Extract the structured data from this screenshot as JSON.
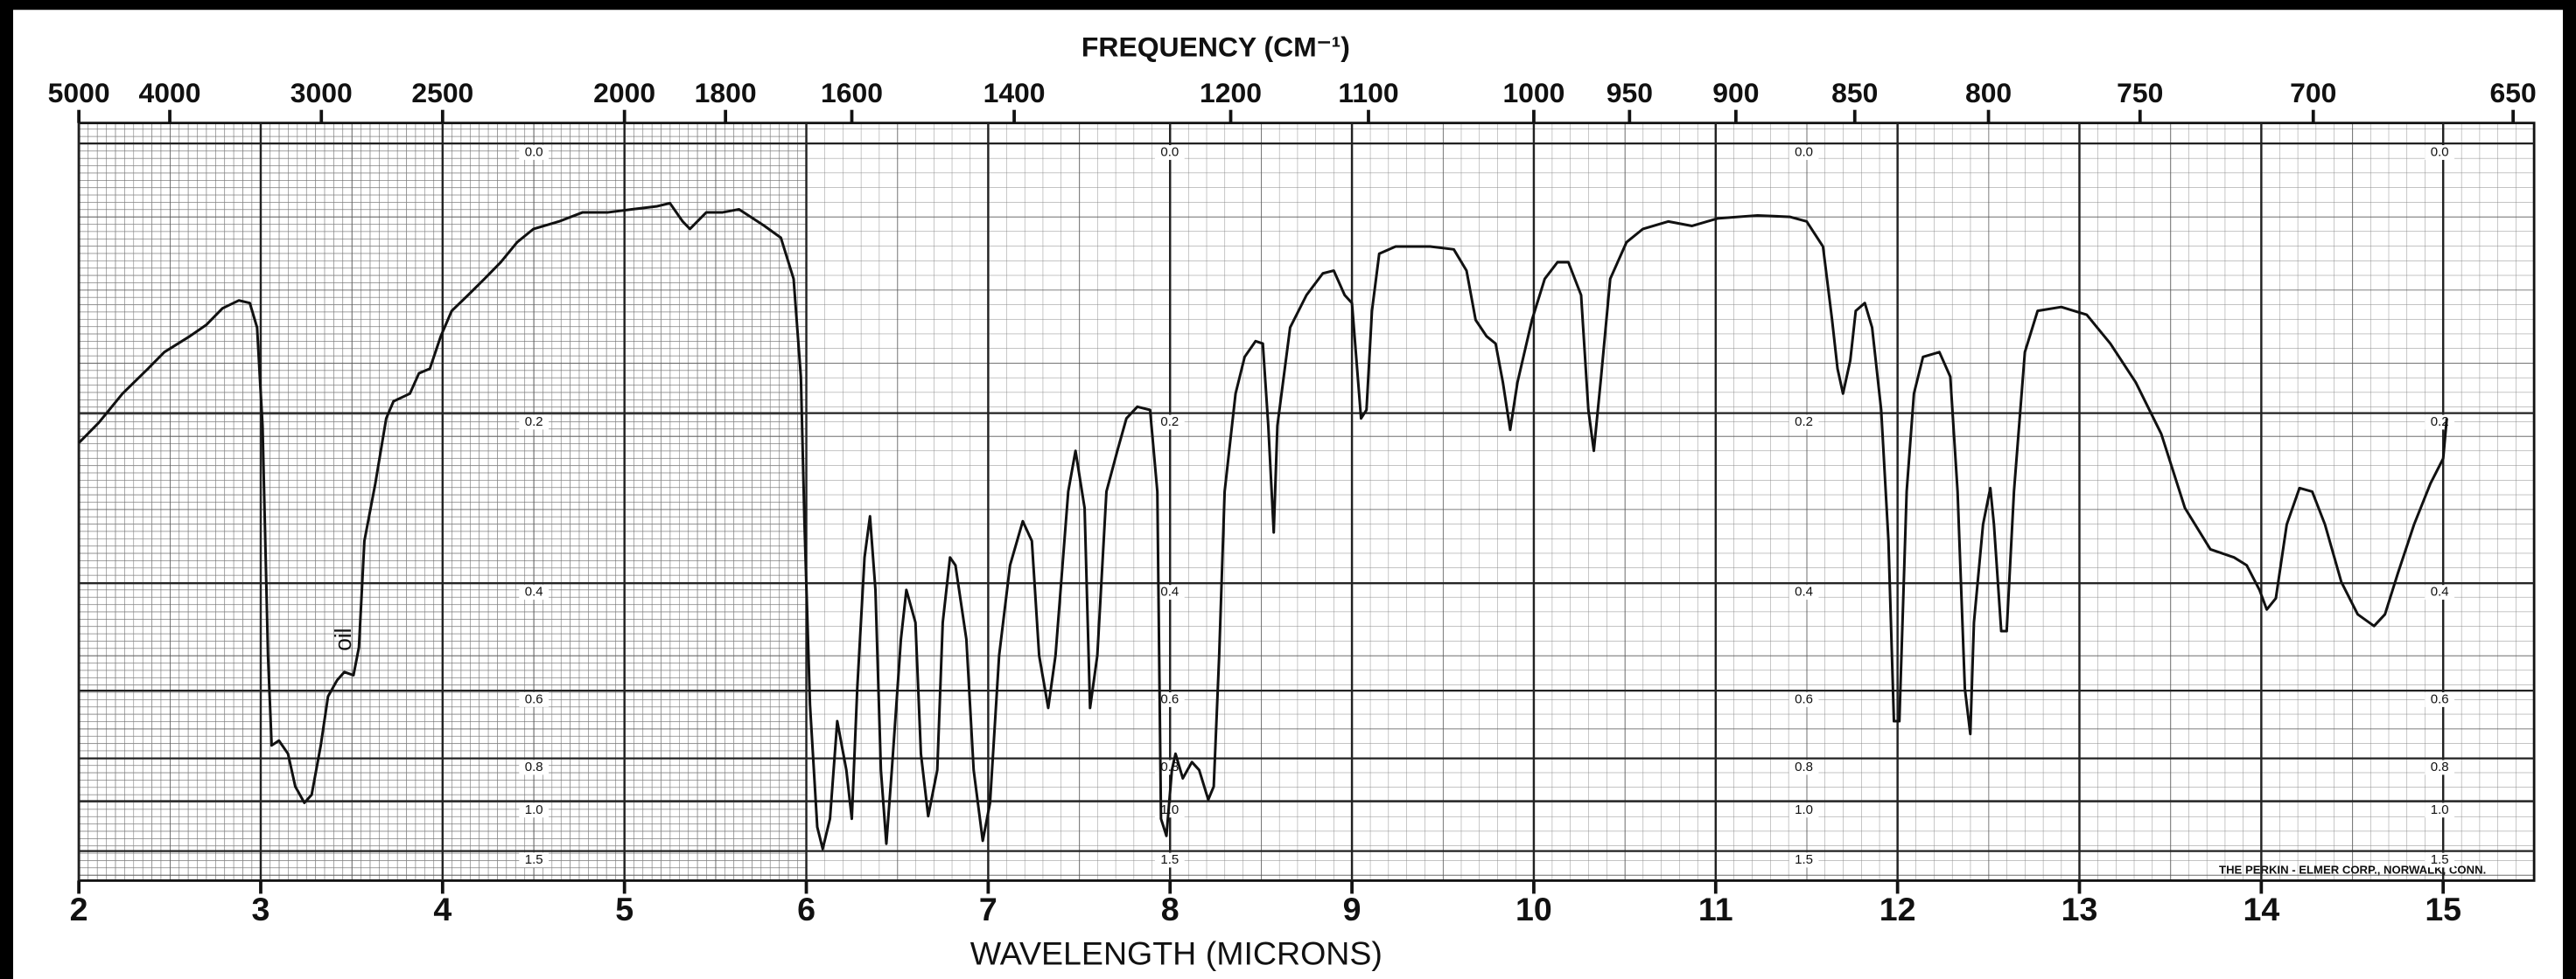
{
  "chart_data": {
    "type": "line",
    "title": "FREQUENCY (CM⁻¹)",
    "x_label": "WAVELENGTH (MICRONS)",
    "top_axis": {
      "ticks": [
        5000,
        4000,
        3000,
        2500,
        2000,
        1800,
        1600,
        1400,
        1200,
        1100,
        1000,
        950,
        900,
        850,
        800,
        750,
        700,
        650
      ]
    },
    "xlim": [
      2,
      15.5
    ],
    "xticks": [
      2,
      3,
      4,
      5,
      6,
      7,
      8,
      9,
      10,
      11,
      12,
      13,
      14,
      15
    ],
    "ylim": [
      0,
      1.5
    ],
    "yscale": "absorbance",
    "yticks": [
      {
        "value": 0,
        "label": "0.0"
      },
      0.2,
      0.4,
      0.6,
      0.8,
      {
        "value": 1,
        "label": "1.0"
      },
      1.5
    ],
    "grid": true,
    "annotations": [
      "oil",
      "THE PERKIN - ELMER CORP., NORWALK, CONN."
    ],
    "x": [
      2.0,
      2.11,
      2.24,
      2.38,
      2.47,
      2.61,
      2.7,
      2.79,
      2.88,
      2.94,
      2.98,
      3.01,
      3.04,
      3.06,
      3.1,
      3.15,
      3.19,
      3.24,
      3.28,
      3.33,
      3.37,
      3.42,
      3.46,
      3.51,
      3.54,
      3.57,
      3.63,
      3.69,
      3.73,
      3.82,
      3.87,
      3.93,
      3.99,
      4.05,
      4.14,
      4.23,
      4.32,
      4.41,
      4.5,
      4.64,
      4.77,
      4.91,
      5.04,
      5.18,
      5.25,
      5.32,
      5.36,
      5.45,
      5.54,
      5.63,
      5.77,
      5.86,
      5.93,
      5.97,
      5.99,
      6.02,
      6.06,
      6.09,
      6.13,
      6.17,
      6.22,
      6.25,
      6.28,
      6.32,
      6.35,
      6.38,
      6.41,
      6.44,
      6.47,
      6.52,
      6.55,
      6.6,
      6.63,
      6.67,
      6.72,
      6.75,
      6.79,
      6.82,
      6.88,
      6.92,
      6.97,
      7.01,
      7.06,
      7.12,
      7.19,
      7.24,
      7.28,
      7.33,
      7.37,
      7.44,
      7.48,
      7.53,
      7.56,
      7.6,
      7.65,
      7.71,
      7.76,
      7.82,
      7.89,
      7.93,
      7.95,
      7.98,
      8.01,
      8.03,
      8.07,
      8.12,
      8.16,
      8.21,
      8.24,
      8.27,
      8.3,
      8.36,
      8.41,
      8.47,
      8.51,
      8.54,
      8.57,
      8.59,
      8.66,
      8.75,
      8.84,
      8.9,
      8.96,
      9.0,
      9.05,
      9.08,
      9.11,
      9.15,
      9.24,
      9.43,
      9.56,
      9.63,
      9.68,
      9.74,
      9.79,
      9.83,
      9.87,
      9.91,
      9.99,
      10.06,
      10.13,
      10.19,
      10.26,
      10.3,
      10.33,
      10.37,
      10.42,
      10.51,
      10.6,
      10.74,
      10.87,
      11.01,
      11.23,
      11.41,
      11.5,
      11.59,
      11.64,
      11.67,
      11.7,
      11.74,
      11.77,
      11.82,
      11.86,
      11.91,
      11.95,
      11.98,
      12.01,
      12.05,
      12.09,
      12.14,
      12.23,
      12.29,
      12.33,
      12.37,
      12.4,
      12.42,
      12.47,
      12.51,
      12.53,
      12.57,
      12.6,
      12.64,
      12.7,
      12.77,
      12.9,
      13.04,
      13.17,
      13.31,
      13.45,
      13.58,
      13.72,
      13.85,
      13.92,
      13.99,
      14.03,
      14.08,
      14.14,
      14.21,
      14.28,
      14.35,
      14.44,
      14.53,
      14.62,
      14.68,
      14.75,
      14.84,
      14.93,
      15.0,
      15.02
    ],
    "series": [
      {
        "color": "#111111",
        "values": [
          0.229,
          0.209,
          0.182,
          0.16,
          0.146,
          0.133,
          0.124,
          0.111,
          0.105,
          0.107,
          0.126,
          0.212,
          0.524,
          0.754,
          0.738,
          0.783,
          0.921,
          1.01,
          0.964,
          0.754,
          0.614,
          0.576,
          0.558,
          0.565,
          0.508,
          0.341,
          0.272,
          0.205,
          0.189,
          0.182,
          0.164,
          0.16,
          0.133,
          0.113,
          0.101,
          0.089,
          0.077,
          0.063,
          0.054,
          0.049,
          0.043,
          0.043,
          0.041,
          0.039,
          0.037,
          0.049,
          0.054,
          0.043,
          0.043,
          0.041,
          0.052,
          0.06,
          0.089,
          0.167,
          0.32,
          0.634,
          1.19,
          1.46,
          1.12,
          0.679,
          0.846,
          1.12,
          0.595,
          0.363,
          0.31,
          0.41,
          0.846,
          1.38,
          0.846,
          0.493,
          0.41,
          0.463,
          0.783,
          1.1,
          0.846,
          0.463,
          0.363,
          0.374,
          0.493,
          0.846,
          1.34,
          1.01,
          0.524,
          0.374,
          0.316,
          0.341,
          0.524,
          0.643,
          0.524,
          0.281,
          0.237,
          0.3,
          0.643,
          0.524,
          0.281,
          0.237,
          0.205,
          0.194,
          0.197,
          0.281,
          1.12,
          1.28,
          0.846,
          0.783,
          0.882,
          0.814,
          0.846,
          0.991,
          0.921,
          0.524,
          0.281,
          0.182,
          0.15,
          0.137,
          0.139,
          0.212,
          0.33,
          0.212,
          0.126,
          0.101,
          0.085,
          0.083,
          0.101,
          0.107,
          0.205,
          0.197,
          0.113,
          0.071,
          0.066,
          0.066,
          0.068,
          0.083,
          0.12,
          0.133,
          0.139,
          0.172,
          0.216,
          0.172,
          0.12,
          0.089,
          0.077,
          0.077,
          0.101,
          0.197,
          0.237,
          0.167,
          0.089,
          0.063,
          0.054,
          0.049,
          0.052,
          0.047,
          0.045,
          0.046,
          0.049,
          0.066,
          0.12,
          0.16,
          0.182,
          0.153,
          0.113,
          0.107,
          0.126,
          0.197,
          0.341,
          0.679,
          0.679,
          0.281,
          0.182,
          0.15,
          0.146,
          0.167,
          0.281,
          0.595,
          0.717,
          0.463,
          0.32,
          0.277,
          0.32,
          0.478,
          0.478,
          0.281,
          0.146,
          0.113,
          0.11,
          0.116,
          0.139,
          0.172,
          0.22,
          0.3,
          0.352,
          0.363,
          0.374,
          0.41,
          0.441,
          0.423,
          0.32,
          0.277,
          0.281,
          0.32,
          0.398,
          0.449,
          0.469,
          0.449,
          0.386,
          0.32,
          0.272,
          0.245,
          0.205
        ]
      }
    ]
  }
}
